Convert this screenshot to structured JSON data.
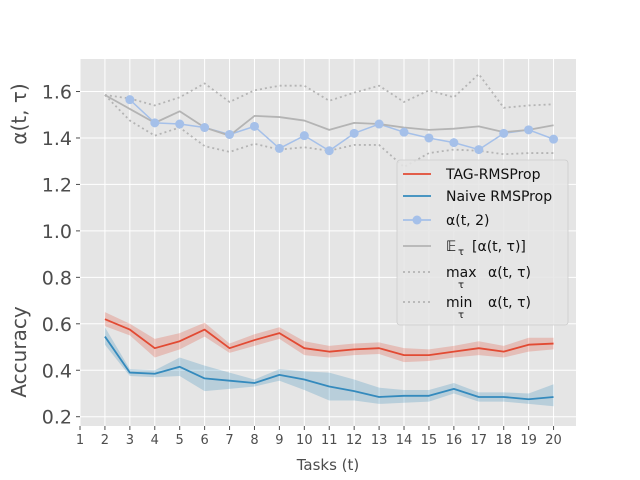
{
  "chart_data": {
    "type": "line",
    "title": "",
    "xlabel": "Tasks (t)",
    "ylabel_top": "α(t, τ)",
    "ylabel_bottom": "Accuracy",
    "xlim": [
      1,
      20.9
    ],
    "ylim": [
      0.16,
      1.74
    ],
    "grid": true,
    "background": "#e5e5e5",
    "x_ticks": [
      1,
      2,
      3,
      4,
      5,
      6,
      7,
      8,
      9,
      10,
      11,
      12,
      13,
      14,
      15,
      16,
      17,
      18,
      19,
      20
    ],
    "x_tick_labels": [
      "1",
      "2",
      "3",
      "4",
      "5",
      "6",
      "7",
      "8",
      "9",
      "10",
      "11",
      "12",
      "13",
      "14",
      "15",
      "16",
      "17",
      "18",
      "19",
      "20"
    ],
    "y_ticks": [
      0.2,
      0.4,
      0.6,
      0.8,
      1.0,
      1.2,
      1.4,
      1.6
    ],
    "y_tick_labels": [
      "0.2",
      "0.4",
      "0.6",
      "0.8",
      "1.0",
      "1.2",
      "1.4",
      "1.6"
    ],
    "legend_position": "right",
    "series": [
      {
        "name": "TAG-RMSProp",
        "style": "solid",
        "color": "#e24a33",
        "x": [
          2,
          3,
          4,
          5,
          6,
          7,
          8,
          9,
          10,
          11,
          12,
          13,
          14,
          15,
          16,
          17,
          18,
          19,
          20
        ],
        "values": [
          0.62,
          0.575,
          0.495,
          0.525,
          0.575,
          0.495,
          0.53,
          0.56,
          0.495,
          0.48,
          0.49,
          0.495,
          0.465,
          0.465,
          0.48,
          0.495,
          0.48,
          0.51,
          0.515
        ],
        "band_lower": [
          0.59,
          0.55,
          0.455,
          0.49,
          0.545,
          0.475,
          0.505,
          0.535,
          0.465,
          0.455,
          0.465,
          0.47,
          0.435,
          0.44,
          0.455,
          0.465,
          0.455,
          0.48,
          0.49
        ],
        "band_upper": [
          0.65,
          0.6,
          0.535,
          0.56,
          0.605,
          0.515,
          0.555,
          0.585,
          0.525,
          0.505,
          0.515,
          0.52,
          0.495,
          0.49,
          0.505,
          0.525,
          0.505,
          0.54,
          0.54
        ]
      },
      {
        "name": "Naive RMSProp",
        "style": "solid",
        "color": "#348abd",
        "x": [
          2,
          3,
          4,
          5,
          6,
          7,
          8,
          9,
          10,
          11,
          12,
          13,
          14,
          15,
          16,
          17,
          18,
          19,
          20
        ],
        "values": [
          0.545,
          0.39,
          0.385,
          0.415,
          0.365,
          0.355,
          0.345,
          0.38,
          0.36,
          0.33,
          0.31,
          0.285,
          0.29,
          0.29,
          0.32,
          0.285,
          0.285,
          0.275,
          0.285
        ],
        "band_lower": [
          0.51,
          0.375,
          0.37,
          0.375,
          0.31,
          0.32,
          0.33,
          0.355,
          0.315,
          0.27,
          0.27,
          0.255,
          0.26,
          0.265,
          0.3,
          0.265,
          0.265,
          0.255,
          0.245
        ],
        "band_upper": [
          0.585,
          0.405,
          0.4,
          0.455,
          0.42,
          0.39,
          0.36,
          0.405,
          0.395,
          0.39,
          0.36,
          0.325,
          0.315,
          0.315,
          0.345,
          0.305,
          0.305,
          0.3,
          0.34
        ]
      },
      {
        "name": "α(t, 2)",
        "style": "marker",
        "color": "#a5c0e9",
        "x": [
          3,
          4,
          5,
          6,
          7,
          8,
          9,
          10,
          11,
          12,
          13,
          14,
          15,
          16,
          17,
          18,
          19,
          20
        ],
        "values": [
          1.565,
          1.465,
          1.46,
          1.445,
          1.415,
          1.45,
          1.355,
          1.41,
          1.345,
          1.42,
          1.46,
          1.425,
          1.4,
          1.38,
          1.35,
          1.42,
          1.435,
          1.395
        ]
      },
      {
        "name": "𝔼τ [α(t, τ)]",
        "style": "solid",
        "color": "#b4b4b4",
        "x": [
          2,
          3,
          4,
          5,
          6,
          7,
          8,
          9,
          10,
          11,
          12,
          13,
          14,
          15,
          16,
          17,
          18,
          19,
          20
        ],
        "values": [
          1.585,
          1.525,
          1.465,
          1.515,
          1.445,
          1.41,
          1.495,
          1.49,
          1.475,
          1.435,
          1.465,
          1.46,
          1.445,
          1.435,
          1.44,
          1.45,
          1.425,
          1.435,
          1.455
        ]
      },
      {
        "name": "max_τ α(t, τ)",
        "style": "dotted",
        "color": "#b4b4b4",
        "x": [
          2,
          3,
          4,
          5,
          6,
          7,
          8,
          9,
          10,
          11,
          12,
          13,
          14,
          15,
          16,
          17,
          18,
          19,
          20
        ],
        "values": [
          1.585,
          1.57,
          1.54,
          1.575,
          1.635,
          1.555,
          1.605,
          1.625,
          1.625,
          1.56,
          1.595,
          1.625,
          1.555,
          1.605,
          1.575,
          1.675,
          1.53,
          1.54,
          1.545
        ]
      },
      {
        "name": "min_τ α(t, τ)",
        "style": "dotted",
        "color": "#b4b4b4",
        "x": [
          2,
          3,
          4,
          5,
          6,
          7,
          8,
          9,
          10,
          11,
          12,
          13,
          14,
          15,
          16,
          17,
          18,
          19,
          20
        ],
        "values": [
          1.585,
          1.475,
          1.41,
          1.445,
          1.365,
          1.34,
          1.375,
          1.35,
          1.36,
          1.345,
          1.37,
          1.37,
          1.275,
          1.335,
          1.35,
          1.345,
          1.33,
          1.335,
          1.335
        ]
      }
    ],
    "legend": [
      {
        "label": "TAG-RMSProp",
        "style": "solid",
        "color": "#e24a33"
      },
      {
        "label": "Naive RMSProp",
        "style": "solid",
        "color": "#348abd"
      },
      {
        "label": "α(t, 2)",
        "style": "marker",
        "color": "#a5c0e9"
      },
      {
        "label": "[α(t, τ)]",
        "prefix": "𝔼",
        "sub": "τ",
        "style": "solid",
        "color": "#b4b4b4"
      },
      {
        "label": "α(t, τ)",
        "prefix": "max",
        "sub": "τ",
        "style": "dotted",
        "color": "#b4b4b4"
      },
      {
        "label": "α(t, τ)",
        "prefix": "min",
        "sub": "τ",
        "style": "dotted",
        "color": "#b4b4b4"
      }
    ]
  }
}
